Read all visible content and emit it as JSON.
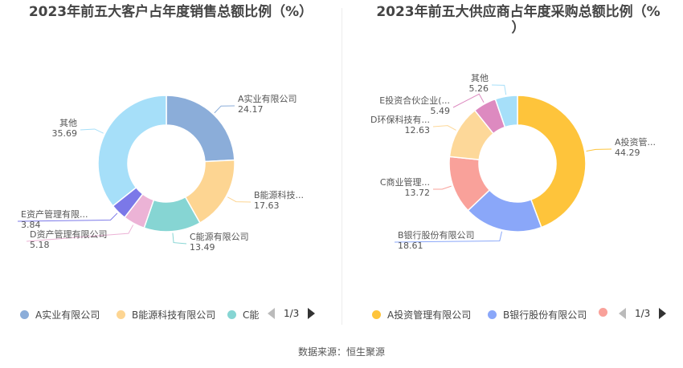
{
  "chart_data": [
    {
      "type": "pie",
      "title": "2023年前五大客户占年度销售总额比例（%）",
      "slices": [
        {
          "label": "A实业有限公司",
          "value": 24.17,
          "color": "#8badd9"
        },
        {
          "label": "B能源科技...",
          "value": 17.63,
          "color": "#fdd592"
        },
        {
          "label": "C能源有限公司",
          "value": 13.49,
          "color": "#86d5d3"
        },
        {
          "label": "D资产管理有限公司",
          "value": 5.18,
          "color": "#ecb3d6"
        },
        {
          "label": "E资产管理有限...",
          "value": 3.84,
          "color": "#7b78e8"
        },
        {
          "label": "其他",
          "value": 35.69,
          "color": "#a6dff9"
        }
      ],
      "legend": {
        "items": [
          {
            "label": "A实业有限公司",
            "color": "#8badd9"
          },
          {
            "label": "B能源科技有限公司",
            "color": "#fdd592"
          },
          {
            "label": "C能",
            "color": "#86d5d3"
          }
        ],
        "page": "1/3",
        "placement": "bottom"
      }
    },
    {
      "type": "pie",
      "title_line1": "2023年前五大供应商占年度采购总额比例（%",
      "title_line2": "）",
      "slices": [
        {
          "label": "A投资管...",
          "value": 44.29,
          "color": "#fec43b"
        },
        {
          "label": "B银行股份有限公司",
          "value": 18.61,
          "color": "#8aa7f9"
        },
        {
          "label": "C商业管理...",
          "value": 13.72,
          "color": "#f9a19a"
        },
        {
          "label": "D环保科技有...",
          "value": 12.63,
          "color": "#fdd899"
        },
        {
          "label": "E投资合伙企业(...",
          "value": 5.49,
          "color": "#dd8ac0"
        },
        {
          "label": "其他",
          "value": 5.26,
          "color": "#a6dff9"
        }
      ],
      "legend": {
        "items": [
          {
            "label": "A投资管理有限公司",
            "color": "#fec43b"
          },
          {
            "label": "B银行股份有限公司",
            "color": "#8aa7f9"
          },
          {
            "label": "",
            "color": "#f9a19a"
          }
        ],
        "page": "1/3",
        "placement": "bottom"
      }
    }
  ],
  "footer": {
    "source": "数据来源：恒生聚源"
  }
}
